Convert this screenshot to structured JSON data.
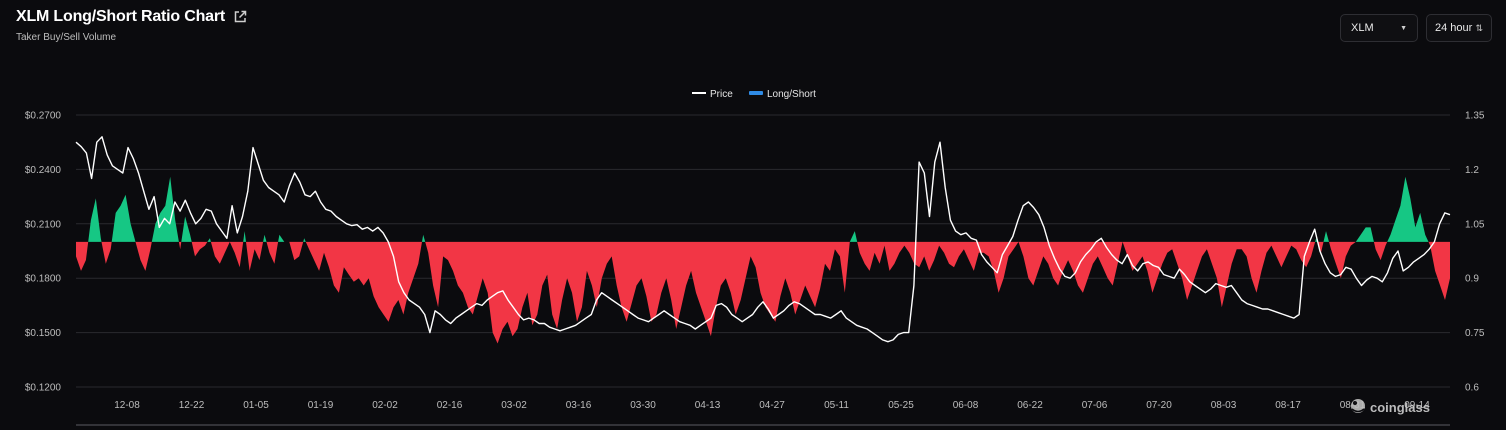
{
  "header": {
    "title": "XLM Long/Short Ratio Chart",
    "subtitle": "Taker Buy/Sell Volume"
  },
  "controls": {
    "coin_select": "XLM",
    "interval_select": "24 hour"
  },
  "watermark": "coinglass",
  "colors": {
    "price_line": "#ffffff",
    "legend_ls_swatch": "#2f8be5",
    "positive_fill": "#16c784",
    "negative_fill": "#f23645",
    "grid": "#2a2a2e",
    "background": "#0b0b0e"
  },
  "chart_data": {
    "type": "area",
    "legend": [
      "Price",
      "Long/Short"
    ],
    "legend_position": "top-center",
    "grid": true,
    "x_ticks": [
      "12-08",
      "12-22",
      "01-05",
      "01-19",
      "02-02",
      "02-16",
      "03-02",
      "03-16",
      "03-30",
      "04-13",
      "04-27",
      "05-11",
      "05-25",
      "06-08",
      "06-22",
      "07-06",
      "07-20",
      "08-03",
      "08-17",
      "08-31",
      "09-14"
    ],
    "y_left_ticks": [
      "$0.2700",
      "$0.2400",
      "$0.2100",
      "$0.1800",
      "$0.1500",
      "$0.1200"
    ],
    "y_right_ticks": [
      "1.35",
      "1.2",
      "1.05",
      "0.9",
      "0.75",
      "0.6"
    ],
    "y_left_range": [
      0.12,
      0.27
    ],
    "y_right_range": [
      0.6,
      1.35
    ],
    "long_short_baseline": 1.0,
    "series": [
      {
        "name": "Price",
        "axis": "left",
        "values": [
          0.255,
          0.2525,
          0.249,
          0.235,
          0.255,
          0.258,
          0.248,
          0.242,
          0.24,
          0.238,
          0.252,
          0.246,
          0.238,
          0.228,
          0.218,
          0.225,
          0.208,
          0.213,
          0.21,
          0.222,
          0.217,
          0.223,
          0.216,
          0.21,
          0.213,
          0.218,
          0.217,
          0.21,
          0.206,
          0.202,
          0.22,
          0.205,
          0.214,
          0.228,
          0.252,
          0.243,
          0.234,
          0.23,
          0.228,
          0.226,
          0.222,
          0.231,
          0.238,
          0.233,
          0.226,
          0.225,
          0.228,
          0.222,
          0.218,
          0.217,
          0.214,
          0.212,
          0.21,
          0.209,
          0.2095,
          0.207,
          0.208,
          0.206,
          0.208,
          0.205,
          0.2,
          0.192,
          0.178,
          0.172,
          0.168,
          0.166,
          0.164,
          0.16,
          0.15,
          0.162,
          0.16,
          0.157,
          0.155,
          0.158,
          0.16,
          0.162,
          0.164,
          0.166,
          0.165,
          0.168,
          0.17,
          0.172,
          0.173,
          0.168,
          0.164,
          0.16,
          0.157,
          0.158,
          0.157,
          0.155,
          0.155,
          0.153,
          0.152,
          0.151,
          0.152,
          0.153,
          0.154,
          0.156,
          0.158,
          0.16,
          0.168,
          0.172,
          0.17,
          0.168,
          0.166,
          0.164,
          0.162,
          0.16,
          0.158,
          0.157,
          0.156,
          0.158,
          0.16,
          0.162,
          0.16,
          0.158,
          0.156,
          0.155,
          0.154,
          0.152,
          0.154,
          0.156,
          0.158,
          0.165,
          0.166,
          0.164,
          0.16,
          0.158,
          0.156,
          0.158,
          0.16,
          0.164,
          0.167,
          0.163,
          0.158,
          0.16,
          0.162,
          0.165,
          0.167,
          0.166,
          0.164,
          0.162,
          0.16,
          0.16,
          0.159,
          0.158,
          0.16,
          0.162,
          0.158,
          0.156,
          0.154,
          0.153,
          0.152,
          0.15,
          0.148,
          0.146,
          0.145,
          0.146,
          0.149,
          0.15,
          0.15,
          0.176,
          0.244,
          0.238,
          0.214,
          0.244,
          0.255,
          0.23,
          0.212,
          0.206,
          0.204,
          0.205,
          0.202,
          0.201,
          0.193,
          0.189,
          0.186,
          0.183,
          0.193,
          0.198,
          0.203,
          0.212,
          0.22,
          0.222,
          0.219,
          0.215,
          0.208,
          0.198,
          0.191,
          0.185,
          0.181,
          0.18,
          0.183,
          0.189,
          0.193,
          0.196,
          0.2,
          0.202,
          0.197,
          0.193,
          0.19,
          0.188,
          0.193,
          0.187,
          0.184,
          0.188,
          0.189,
          0.187,
          0.186,
          0.182,
          0.181,
          0.18,
          0.185,
          0.182,
          0.178,
          0.176,
          0.174,
          0.172,
          0.174,
          0.177,
          0.176,
          0.175,
          0.176,
          0.172,
          0.168,
          0.166,
          0.165,
          0.164,
          0.163,
          0.163,
          0.162,
          0.161,
          0.16,
          0.159,
          0.158,
          0.16,
          0.192,
          0.2,
          0.207,
          0.195,
          0.188,
          0.183,
          0.181,
          0.182,
          0.186,
          0.185,
          0.18,
          0.176,
          0.179,
          0.181,
          0.18,
          0.178,
          0.183,
          0.191,
          0.195,
          0.184,
          0.186,
          0.189,
          0.191,
          0.193,
          0.196,
          0.2,
          0.21,
          0.216,
          0.215
        ]
      },
      {
        "name": "Long/Short",
        "axis": "right",
        "values": [
          0.96,
          0.92,
          0.95,
          1.06,
          1.12,
          1.01,
          0.94,
          0.98,
          1.08,
          1.1,
          1.13,
          1.05,
          1.0,
          0.95,
          0.92,
          0.98,
          1.05,
          1.08,
          1.1,
          1.18,
          1.06,
          0.98,
          1.07,
          1.02,
          0.96,
          0.98,
          0.99,
          1.01,
          0.96,
          0.94,
          0.97,
          1.0,
          0.97,
          0.93,
          1.03,
          0.92,
          0.98,
          0.95,
          1.02,
          0.97,
          0.94,
          1.02,
          1.0,
          1.0,
          0.95,
          0.96,
          1.01,
          0.98,
          0.95,
          0.92,
          0.97,
          0.93,
          0.88,
          0.86,
          0.93,
          0.91,
          0.89,
          0.9,
          0.88,
          0.9,
          0.85,
          0.82,
          0.8,
          0.78,
          0.82,
          0.84,
          0.8,
          0.86,
          0.9,
          0.94,
          1.02,
          0.97,
          0.88,
          0.82,
          0.96,
          0.95,
          0.92,
          0.88,
          0.86,
          0.82,
          0.8,
          0.85,
          0.9,
          0.86,
          0.75,
          0.72,
          0.76,
          0.78,
          0.74,
          0.76,
          0.82,
          0.86,
          0.77,
          0.8,
          0.88,
          0.91,
          0.8,
          0.76,
          0.84,
          0.9,
          0.86,
          0.78,
          0.82,
          0.92,
          0.88,
          0.82,
          0.9,
          0.94,
          0.96,
          0.88,
          0.82,
          0.78,
          0.83,
          0.88,
          0.9,
          0.85,
          0.78,
          0.8,
          0.86,
          0.9,
          0.84,
          0.76,
          0.82,
          0.88,
          0.92,
          0.86,
          0.82,
          0.78,
          0.74,
          0.82,
          0.88,
          0.9,
          0.86,
          0.8,
          0.84,
          0.9,
          0.96,
          0.93,
          0.86,
          0.82,
          0.8,
          0.78,
          0.85,
          0.9,
          0.86,
          0.8,
          0.84,
          0.88,
          0.85,
          0.82,
          0.87,
          0.94,
          0.92,
          0.98,
          0.96,
          0.86,
          1.0,
          1.03,
          0.97,
          0.94,
          0.92,
          0.97,
          0.94,
          0.99,
          0.92,
          0.94,
          0.97,
          0.99,
          0.97,
          0.94,
          0.93,
          0.96,
          0.92,
          0.95,
          0.99,
          0.97,
          0.94,
          0.93,
          0.96,
          0.98,
          0.95,
          0.92,
          0.97,
          0.97,
          0.96,
          0.92,
          0.86,
          0.9,
          0.96,
          0.98,
          1.0,
          0.96,
          0.9,
          0.88,
          0.92,
          0.96,
          0.94,
          0.9,
          0.88,
          0.92,
          0.95,
          0.92,
          0.88,
          0.86,
          0.9,
          0.94,
          0.96,
          0.93,
          0.9,
          0.88,
          0.94,
          1.0,
          0.96,
          0.92,
          0.94,
          0.96,
          0.92,
          0.86,
          0.9,
          0.94,
          0.97,
          0.98,
          0.94,
          0.9,
          0.84,
          0.88,
          0.92,
          0.96,
          0.98,
          0.94,
          0.9,
          0.82,
          0.88,
          0.94,
          0.98,
          0.98,
          0.96,
          0.9,
          0.86,
          0.92,
          0.97,
          0.99,
          0.96,
          0.93,
          0.96,
          0.99,
          0.98,
          0.95,
          0.93,
          0.96,
          1.01,
          0.97,
          1.03,
          0.98,
          0.94,
          0.9,
          0.96,
          0.99,
          1.0,
          1.02,
          1.04,
          1.04,
          0.98,
          0.95,
          0.99,
          1.02,
          1.06,
          1.1,
          1.18,
          1.12,
          1.04,
          1.08,
          1.02,
          0.99,
          0.92,
          0.88,
          0.84,
          0.9
        ]
      }
    ]
  }
}
